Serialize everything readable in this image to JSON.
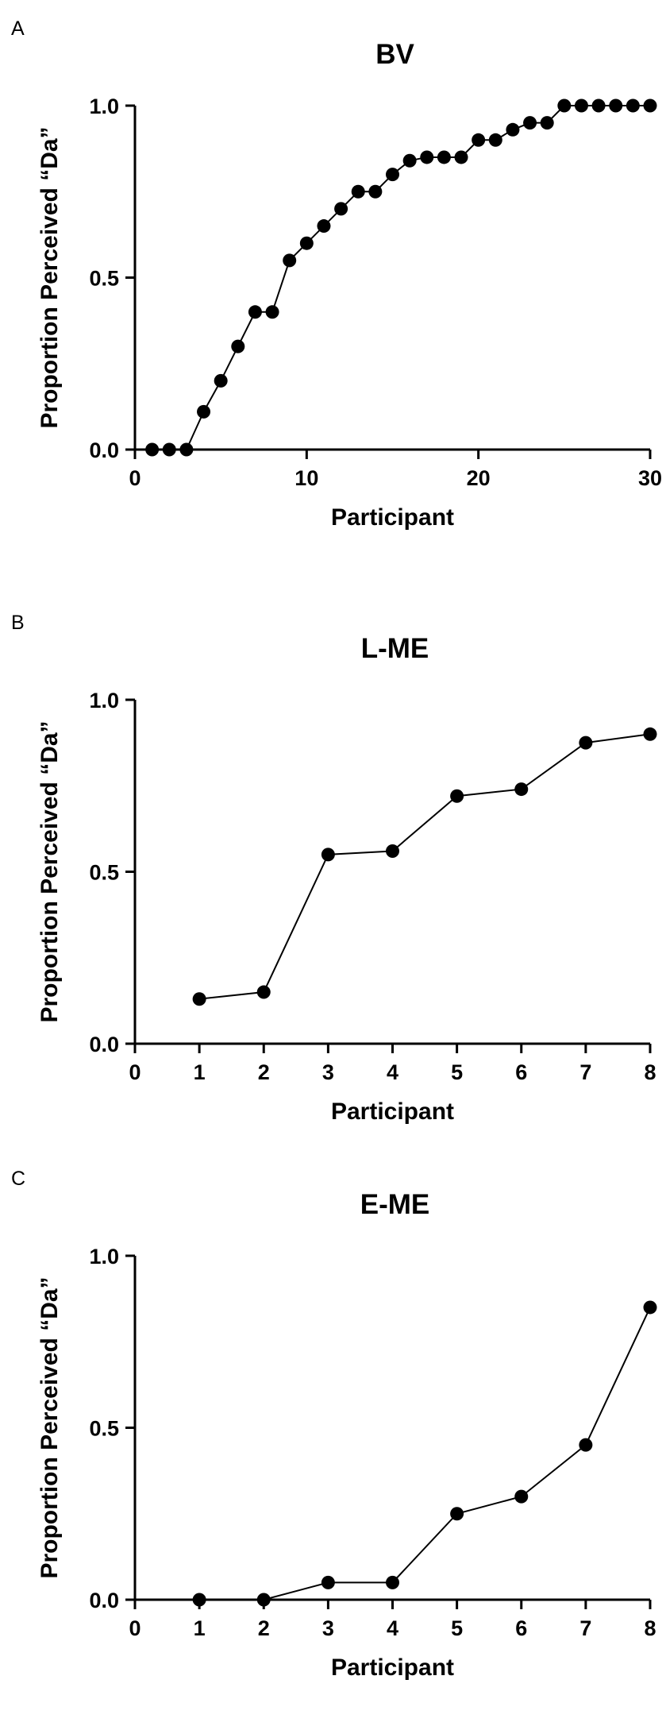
{
  "chart_data": [
    {
      "type": "line",
      "panel_label": "A",
      "title": "BV",
      "xlabel": "Participant",
      "ylabel": "Proportion Perceived “Da”",
      "xlim": [
        0,
        30
      ],
      "ylim": [
        0,
        1
      ],
      "xticks": [
        0,
        10,
        20,
        30
      ],
      "yticks": [
        0,
        0.5,
        1
      ],
      "xtick_labels": [
        "0",
        "10",
        "20",
        "30"
      ],
      "ytick_labels": [
        "0.0",
        "0.5",
        "1.0"
      ],
      "grid": false,
      "marker": "filled-circle",
      "color": "#000000",
      "series": [
        {
          "x": [
            1,
            2,
            3,
            4,
            5,
            6,
            7,
            8,
            9,
            10,
            11,
            12,
            13,
            14,
            15,
            16,
            17,
            18,
            19,
            20,
            21,
            22,
            23,
            24,
            25,
            26,
            27,
            28,
            29,
            30
          ],
          "y": [
            0,
            0,
            0,
            0.11,
            0.2,
            0.3,
            0.4,
            0.4,
            0.55,
            0.6,
            0.65,
            0.7,
            0.75,
            0.75,
            0.8,
            0.84,
            0.85,
            0.85,
            0.85,
            0.9,
            0.9,
            0.93,
            0.95,
            0.95,
            1,
            1,
            1,
            1,
            1,
            1
          ]
        }
      ]
    },
    {
      "type": "line",
      "panel_label": "B",
      "title": "L-ME",
      "xlabel": "Participant",
      "ylabel": "Proportion Perceived “Da”",
      "xlim": [
        0,
        8
      ],
      "ylim": [
        0,
        1
      ],
      "xticks": [
        0,
        1,
        2,
        3,
        4,
        5,
        6,
        7,
        8
      ],
      "yticks": [
        0,
        0.5,
        1
      ],
      "xtick_labels": [
        "0",
        "1",
        "2",
        "3",
        "4",
        "5",
        "6",
        "7",
        "8"
      ],
      "ytick_labels": [
        "0.0",
        "0.5",
        "1.0"
      ],
      "grid": false,
      "marker": "filled-circle",
      "color": "#000000",
      "series": [
        {
          "x": [
            1,
            2,
            3,
            4,
            5,
            6,
            7,
            8
          ],
          "y": [
            0.13,
            0.15,
            0.55,
            0.56,
            0.72,
            0.74,
            0.875,
            0.9
          ]
        }
      ]
    },
    {
      "type": "line",
      "panel_label": "C",
      "title": "E-ME",
      "xlabel": "Participant",
      "ylabel": "Proportion Perceived “Da”",
      "xlim": [
        0,
        8
      ],
      "ylim": [
        0,
        1
      ],
      "xticks": [
        0,
        1,
        2,
        3,
        4,
        5,
        6,
        7,
        8
      ],
      "yticks": [
        0,
        0.5,
        1
      ],
      "xtick_labels": [
        "0",
        "1",
        "2",
        "3",
        "4",
        "5",
        "6",
        "7",
        "8"
      ],
      "ytick_labels": [
        "0.0",
        "0.5",
        "1.0"
      ],
      "grid": false,
      "marker": "filled-circle",
      "color": "#000000",
      "series": [
        {
          "x": [
            1,
            2,
            3,
            4,
            5,
            6,
            7,
            8
          ],
          "y": [
            0,
            0,
            0.05,
            0.05,
            0.25,
            0.3,
            0.45,
            0.85
          ]
        }
      ]
    }
  ]
}
